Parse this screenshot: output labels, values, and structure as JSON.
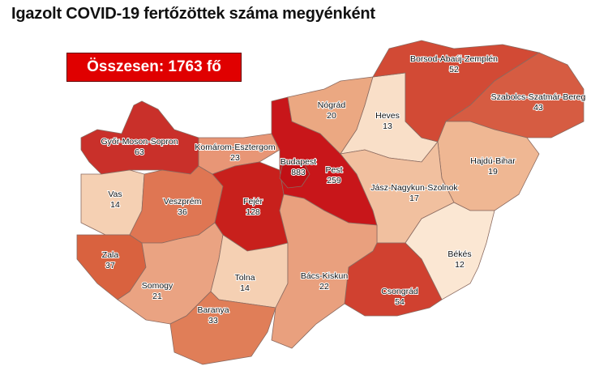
{
  "title": "Igazolt COVID-19 fertőzöttek száma megyénként",
  "total_label": "Összesen: 1763 fő",
  "counties": [
    {
      "id": "gyor",
      "name": "Győr-Moson-Sopron",
      "value": "63",
      "color": "#c9302a"
    },
    {
      "id": "vas",
      "name": "Vas",
      "value": "14",
      "color": "#f5d0b3"
    },
    {
      "id": "zala",
      "name": "Zala",
      "value": "37",
      "color": "#d9623f"
    },
    {
      "id": "veszprem",
      "name": "Veszprém",
      "value": "36",
      "color": "#df7653"
    },
    {
      "id": "komarom",
      "name": "Komárom-Esztergom",
      "value": "23",
      "color": "#e89676"
    },
    {
      "id": "fejer",
      "name": "Fejér",
      "value": "128",
      "color": "#c8201c"
    },
    {
      "id": "somogy",
      "name": "Somogy",
      "value": "21",
      "color": "#eaa382"
    },
    {
      "id": "tolna",
      "name": "Tolna",
      "value": "14",
      "color": "#f5d0b3"
    },
    {
      "id": "baranya",
      "name": "Baranya",
      "value": "33",
      "color": "#e07e58"
    },
    {
      "id": "pest",
      "name": "Pest",
      "value": "259",
      "color": "#c8161a"
    },
    {
      "id": "budapest",
      "name": "Budapest",
      "value": "883",
      "color": "#c01015"
    },
    {
      "id": "nograd",
      "name": "Nógrád",
      "value": "20",
      "color": "#eba882"
    },
    {
      "id": "heves",
      "name": "Heves",
      "value": "13",
      "color": "#f9dfc8"
    },
    {
      "id": "borsod",
      "name": "Borsod-Abaúj-Zemplén",
      "value": "52",
      "color": "#d24a35"
    },
    {
      "id": "szabolcs",
      "name": "Szabolcs-Szatmár-Bereg",
      "value": "43",
      "color": "#d65c42"
    },
    {
      "id": "hajdu",
      "name": "Hajdú-Bihar",
      "value": "19",
      "color": "#efb793"
    },
    {
      "id": "jasz",
      "name": "Jász-Nagykun-Szolnok",
      "value": "17",
      "color": "#f1c09f"
    },
    {
      "id": "bekes",
      "name": "Békés",
      "value": "12",
      "color": "#fbe7d3"
    },
    {
      "id": "csongrad",
      "name": "Csongrád",
      "value": "54",
      "color": "#d04130"
    },
    {
      "id": "bacs",
      "name": "Bács-Kiskun",
      "value": "22",
      "color": "#e9a07e"
    }
  ]
}
